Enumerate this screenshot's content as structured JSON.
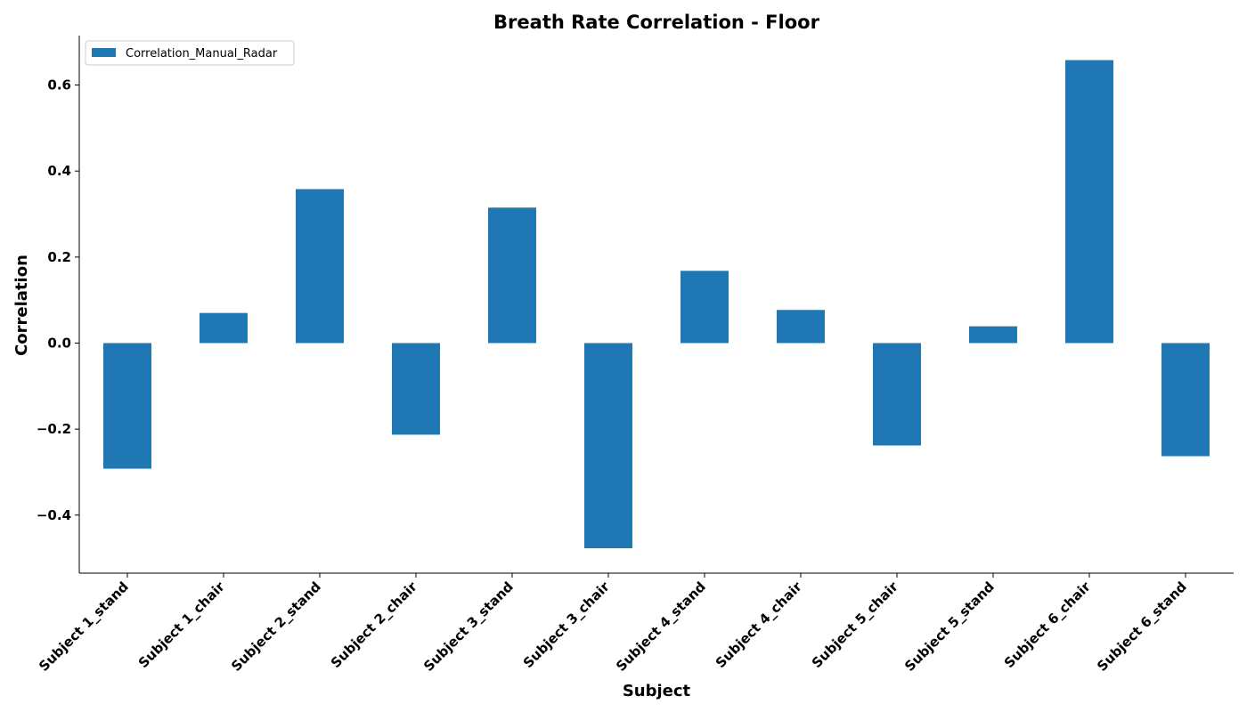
{
  "chart_data": {
    "type": "bar",
    "title": "Breath Rate Correlation - Floor",
    "xlabel": "Subject",
    "ylabel": "Correlation",
    "categories": [
      "Subject 1_stand",
      "Subject 1_chair",
      "Subject 2_stand",
      "Subject 2_chair",
      "Subject 3_stand",
      "Subject 3_chair",
      "Subject 4_stand",
      "Subject 4_chair",
      "Subject 5_chair",
      "Subject 5_stand",
      "Subject 6_chair",
      "Subject 6_stand"
    ],
    "series": [
      {
        "name": "Correlation_Manual_Radar",
        "color": "#1f77b4",
        "values": [
          -0.292,
          0.07,
          0.358,
          -0.213,
          0.315,
          -0.477,
          0.168,
          0.077,
          -0.238,
          0.039,
          0.658,
          -0.263
        ]
      }
    ],
    "ylim": [
      -0.535,
      0.715
    ],
    "yticks": [
      -0.4,
      -0.2,
      0.0,
      0.2,
      0.4,
      0.6
    ],
    "ytick_labels": [
      "−0.4",
      "−0.2",
      "0.0",
      "0.2",
      "0.4",
      "0.6"
    ],
    "grid": false,
    "legend_position": "top-left"
  }
}
